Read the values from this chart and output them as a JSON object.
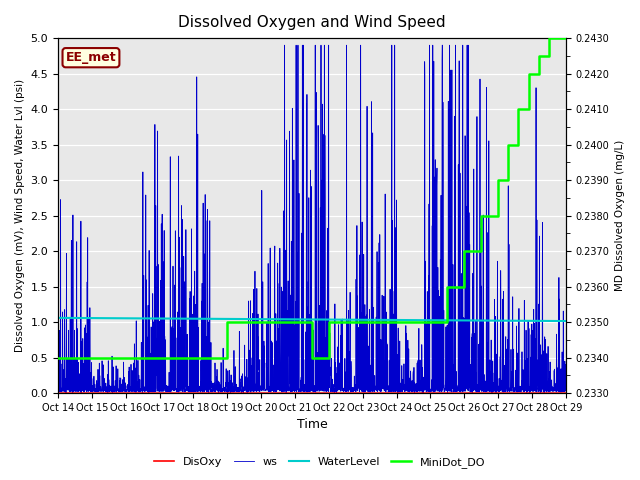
{
  "title": "Dissolved Oxygen and Wind Speed",
  "ylabel_left": "Dissolved Oxygen (mV), Wind Speed, Water Lvl (psi)",
  "ylabel_right": "MD Dissolved Oxygen (mg/L)",
  "xlabel": "Time",
  "annotation": "EE_met",
  "ylim_left": [
    0.0,
    5.0
  ],
  "ylim_right": [
    0.233,
    0.243
  ],
  "x_tick_labels": [
    "Oct 14",
    "Oct 15",
    "Oct 16",
    "Oct 17",
    "Oct 18",
    "Oct 19",
    "Oct 20",
    "Oct 21",
    "Oct 22",
    "Oct 23",
    "Oct 24",
    "Oct 25",
    "Oct 26",
    "Oct 27",
    "Oct 28",
    "Oct 29"
  ],
  "colors": {
    "DisOxy": "#FF0000",
    "ws": "#0000CC",
    "WaterLevel": "#00CCCC",
    "MiniDot_DO": "#00FF00",
    "background": "#E8E8E8"
  },
  "legend_labels": [
    "DisOxy",
    "ws",
    "WaterLevel",
    "MiniDot_DO"
  ],
  "ws_seed": 42,
  "minidot_x": [
    0.0,
    1.0,
    4.5,
    5.0,
    6.5,
    7.5,
    8.0,
    9.5,
    11.5,
    12.0,
    12.5,
    13.0,
    13.3,
    13.6,
    13.9,
    14.2,
    14.5,
    14.7,
    15.0
  ],
  "minidot_y": [
    0.234,
    0.234,
    0.234,
    0.235,
    0.235,
    0.234,
    0.235,
    0.235,
    0.236,
    0.237,
    0.238,
    0.239,
    0.24,
    0.241,
    0.242,
    0.2425,
    0.243,
    0.243,
    0.243
  ],
  "water_level_base": 1.06,
  "water_level_slope": -0.003
}
